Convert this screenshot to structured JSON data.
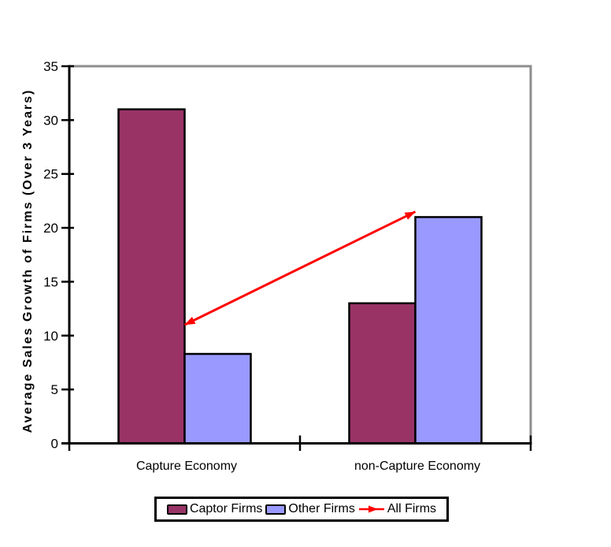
{
  "chart_data": {
    "type": "bar",
    "ylabel": "Average Sales Growth of Firms (Over 3 Years)",
    "xlabel": "",
    "categories": [
      "Capture Economy",
      "non-Capture Economy"
    ],
    "series": [
      {
        "name": "Captor Firms",
        "type": "bar",
        "color": "#993366",
        "values": [
          31,
          13
        ]
      },
      {
        "name": "Other Firms",
        "type": "bar",
        "color": "#9999FF",
        "values": [
          8.3,
          21
        ]
      },
      {
        "name": "All Firms",
        "type": "line",
        "color": "#FF0000",
        "values": [
          11,
          21.5
        ]
      }
    ],
    "ylim": [
      0,
      35
    ],
    "ytick_step": 5,
    "ytick_labels": [
      "0",
      "5",
      "10",
      "15",
      "20",
      "25",
      "30",
      "35"
    ],
    "grid": false,
    "legend_position": "bottom",
    "plot_border_color": "#8E8E8E",
    "axis_color": "#000000"
  }
}
